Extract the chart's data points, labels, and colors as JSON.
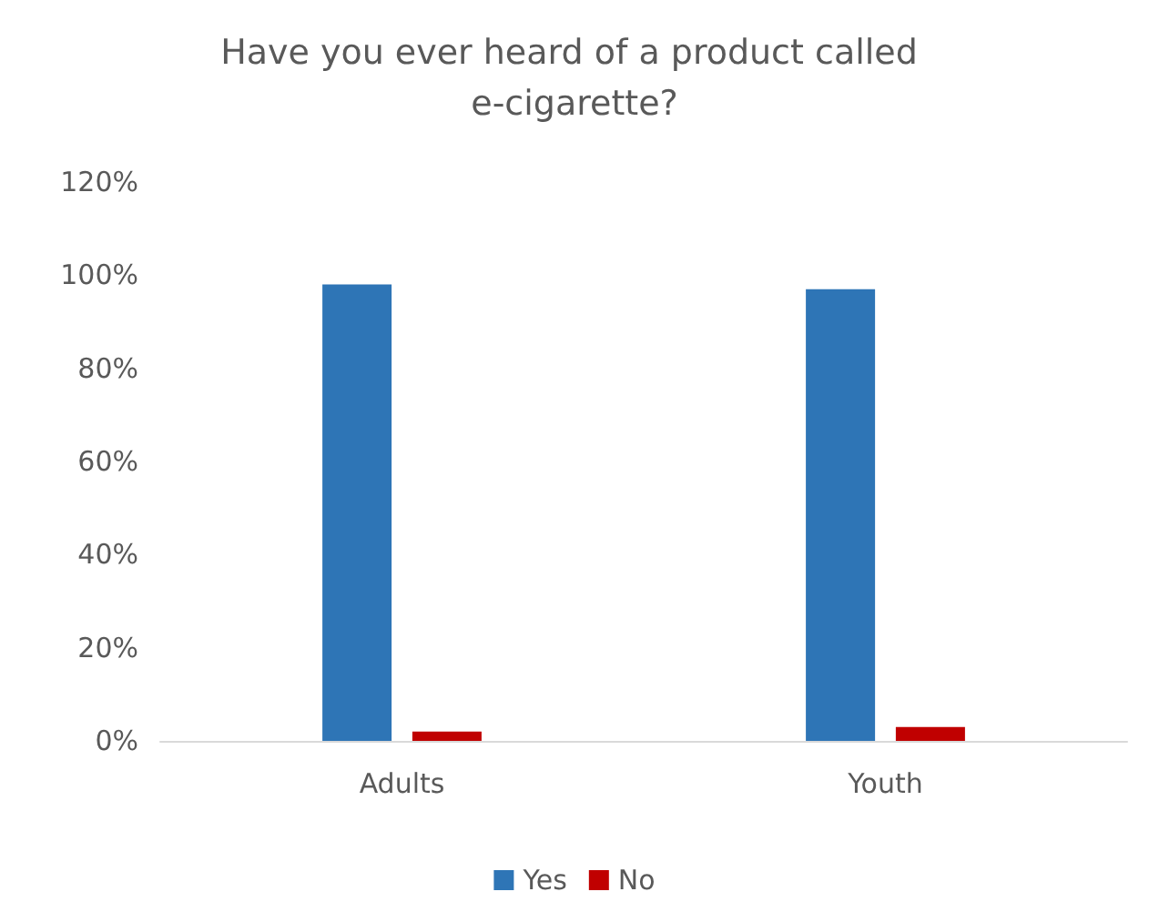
{
  "chart_data": {
    "type": "bar",
    "title": "Have you ever heard of a product called e-cigarette?",
    "categories": [
      "Adults",
      "Youth"
    ],
    "series": [
      {
        "name": "Yes",
        "color": "#2e75b6",
        "values": [
          98,
          97
        ]
      },
      {
        "name": "No",
        "color": "#c00000",
        "values": [
          2,
          3
        ]
      }
    ],
    "ylim": [
      0,
      120
    ],
    "yticks": [
      {
        "value": 0,
        "label": "0%"
      },
      {
        "value": 20,
        "label": "20%"
      },
      {
        "value": 40,
        "label": "40%"
      },
      {
        "value": 60,
        "label": "60%"
      },
      {
        "value": 80,
        "label": "80%"
      },
      {
        "value": 100,
        "label": "100%"
      },
      {
        "value": 120,
        "label": "120%"
      }
    ],
    "grid": false,
    "legend": "bottom"
  }
}
